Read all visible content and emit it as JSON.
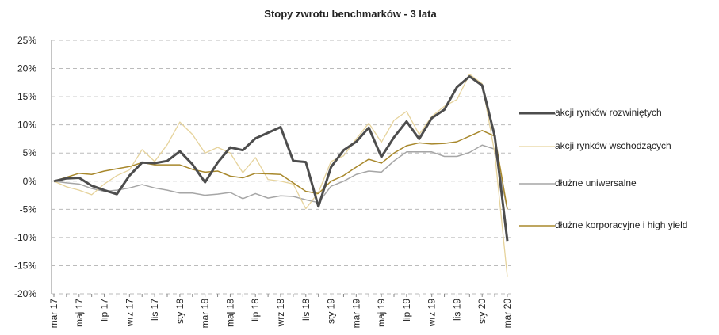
{
  "chart_data": {
    "type": "line",
    "title": "Stopy zwrotu benchmarków - 3 lata",
    "categories": [
      "mar 17",
      null,
      "maj 17",
      null,
      "lip 17",
      null,
      "wrz 17",
      null,
      "lis 17",
      null,
      "sty 18",
      null,
      "mar 18",
      null,
      "maj 18",
      null,
      "lip 18",
      null,
      "wrz 18",
      null,
      "lis 18",
      null,
      "sty 19",
      null,
      "mar 19",
      null,
      "maj 19",
      null,
      "lip 19",
      null,
      "wrz 19",
      null,
      "lis 19",
      null,
      "sty 20",
      null,
      "mar 20"
    ],
    "series": [
      {
        "name": "akcji rynków rozwiniętych",
        "color": "#4d4d4d",
        "width": 3,
        "values": [
          0,
          0.5,
          0.6,
          -0.8,
          -1.6,
          -2.3,
          1.0,
          3.3,
          3.2,
          3.6,
          5.3,
          3.0,
          -0.2,
          3.3,
          6.0,
          5.5,
          7.6,
          8.6,
          9.6,
          3.6,
          3.4,
          -4.5,
          2.5,
          5.5,
          7.0,
          9.5,
          4.3,
          7.8,
          10.6,
          7.5,
          11.2,
          12.7,
          16.7,
          18.6,
          17.0,
          8.0,
          -10.6
        ]
      },
      {
        "name": "akcji rynków wschodzących",
        "color": "#e6d39c",
        "width": 1.3,
        "values": [
          0,
          -1.0,
          -1.6,
          -2.4,
          -0.5,
          1.0,
          2.0,
          5.6,
          3.5,
          6.5,
          10.5,
          8.3,
          5.0,
          6.0,
          5.0,
          1.5,
          4.2,
          0.3,
          0,
          -0.5,
          -4.9,
          -2.0,
          3.5,
          4.5,
          7.5,
          10.3,
          6.9,
          10.8,
          12.4,
          8.3,
          11.5,
          13.3,
          14.5,
          19.0,
          17.3,
          5.0,
          -17.0
        ]
      },
      {
        "name": "dłużne uniwersalne",
        "color": "#a6a6a6",
        "width": 1.5,
        "values": [
          0,
          -0.3,
          -0.5,
          -1.3,
          -1.8,
          -1.6,
          -1.2,
          -0.6,
          -1.2,
          -1.6,
          -2.1,
          -2.1,
          -2.5,
          -2.3,
          -2.0,
          -3.1,
          -2.2,
          -3.0,
          -2.6,
          -2.7,
          -3.3,
          -3.8,
          -0.9,
          0,
          1.2,
          1.8,
          1.6,
          3.6,
          5.2,
          5.2,
          5.2,
          4.4,
          4.4,
          5.1,
          6.4,
          5.7,
          -5.0
        ]
      },
      {
        "name": "dłużne korporacyjne i high yield",
        "color": "#a8882c",
        "width": 1.5,
        "values": [
          0,
          0.7,
          1.4,
          1.2,
          1.8,
          2.2,
          2.6,
          3.3,
          2.9,
          2.9,
          2.9,
          2.1,
          1.6,
          1.8,
          0.9,
          0.6,
          1.4,
          1.3,
          1.2,
          -0.3,
          -1.8,
          -2.2,
          0,
          1.0,
          2.5,
          3.9,
          3.2,
          5.0,
          6.3,
          6.8,
          6.6,
          6.7,
          7.0,
          8.0,
          9.0,
          8.0,
          -5.0
        ]
      }
    ],
    "ylim": [
      -20,
      25
    ],
    "yticks": [
      {
        "value": -20,
        "label": "-20%"
      },
      {
        "value": -15,
        "label": "-15%"
      },
      {
        "value": -10,
        "label": "-10%"
      },
      {
        "value": -5,
        "label": "-5%"
      },
      {
        "value": 0,
        "label": "0%"
      },
      {
        "value": 5,
        "label": "5%"
      },
      {
        "value": 10,
        "label": "10%"
      },
      {
        "value": 15,
        "label": "15%"
      },
      {
        "value": 20,
        "label": "20%"
      },
      {
        "value": 25,
        "label": "25%"
      }
    ],
    "grid": true,
    "legend": "right"
  }
}
